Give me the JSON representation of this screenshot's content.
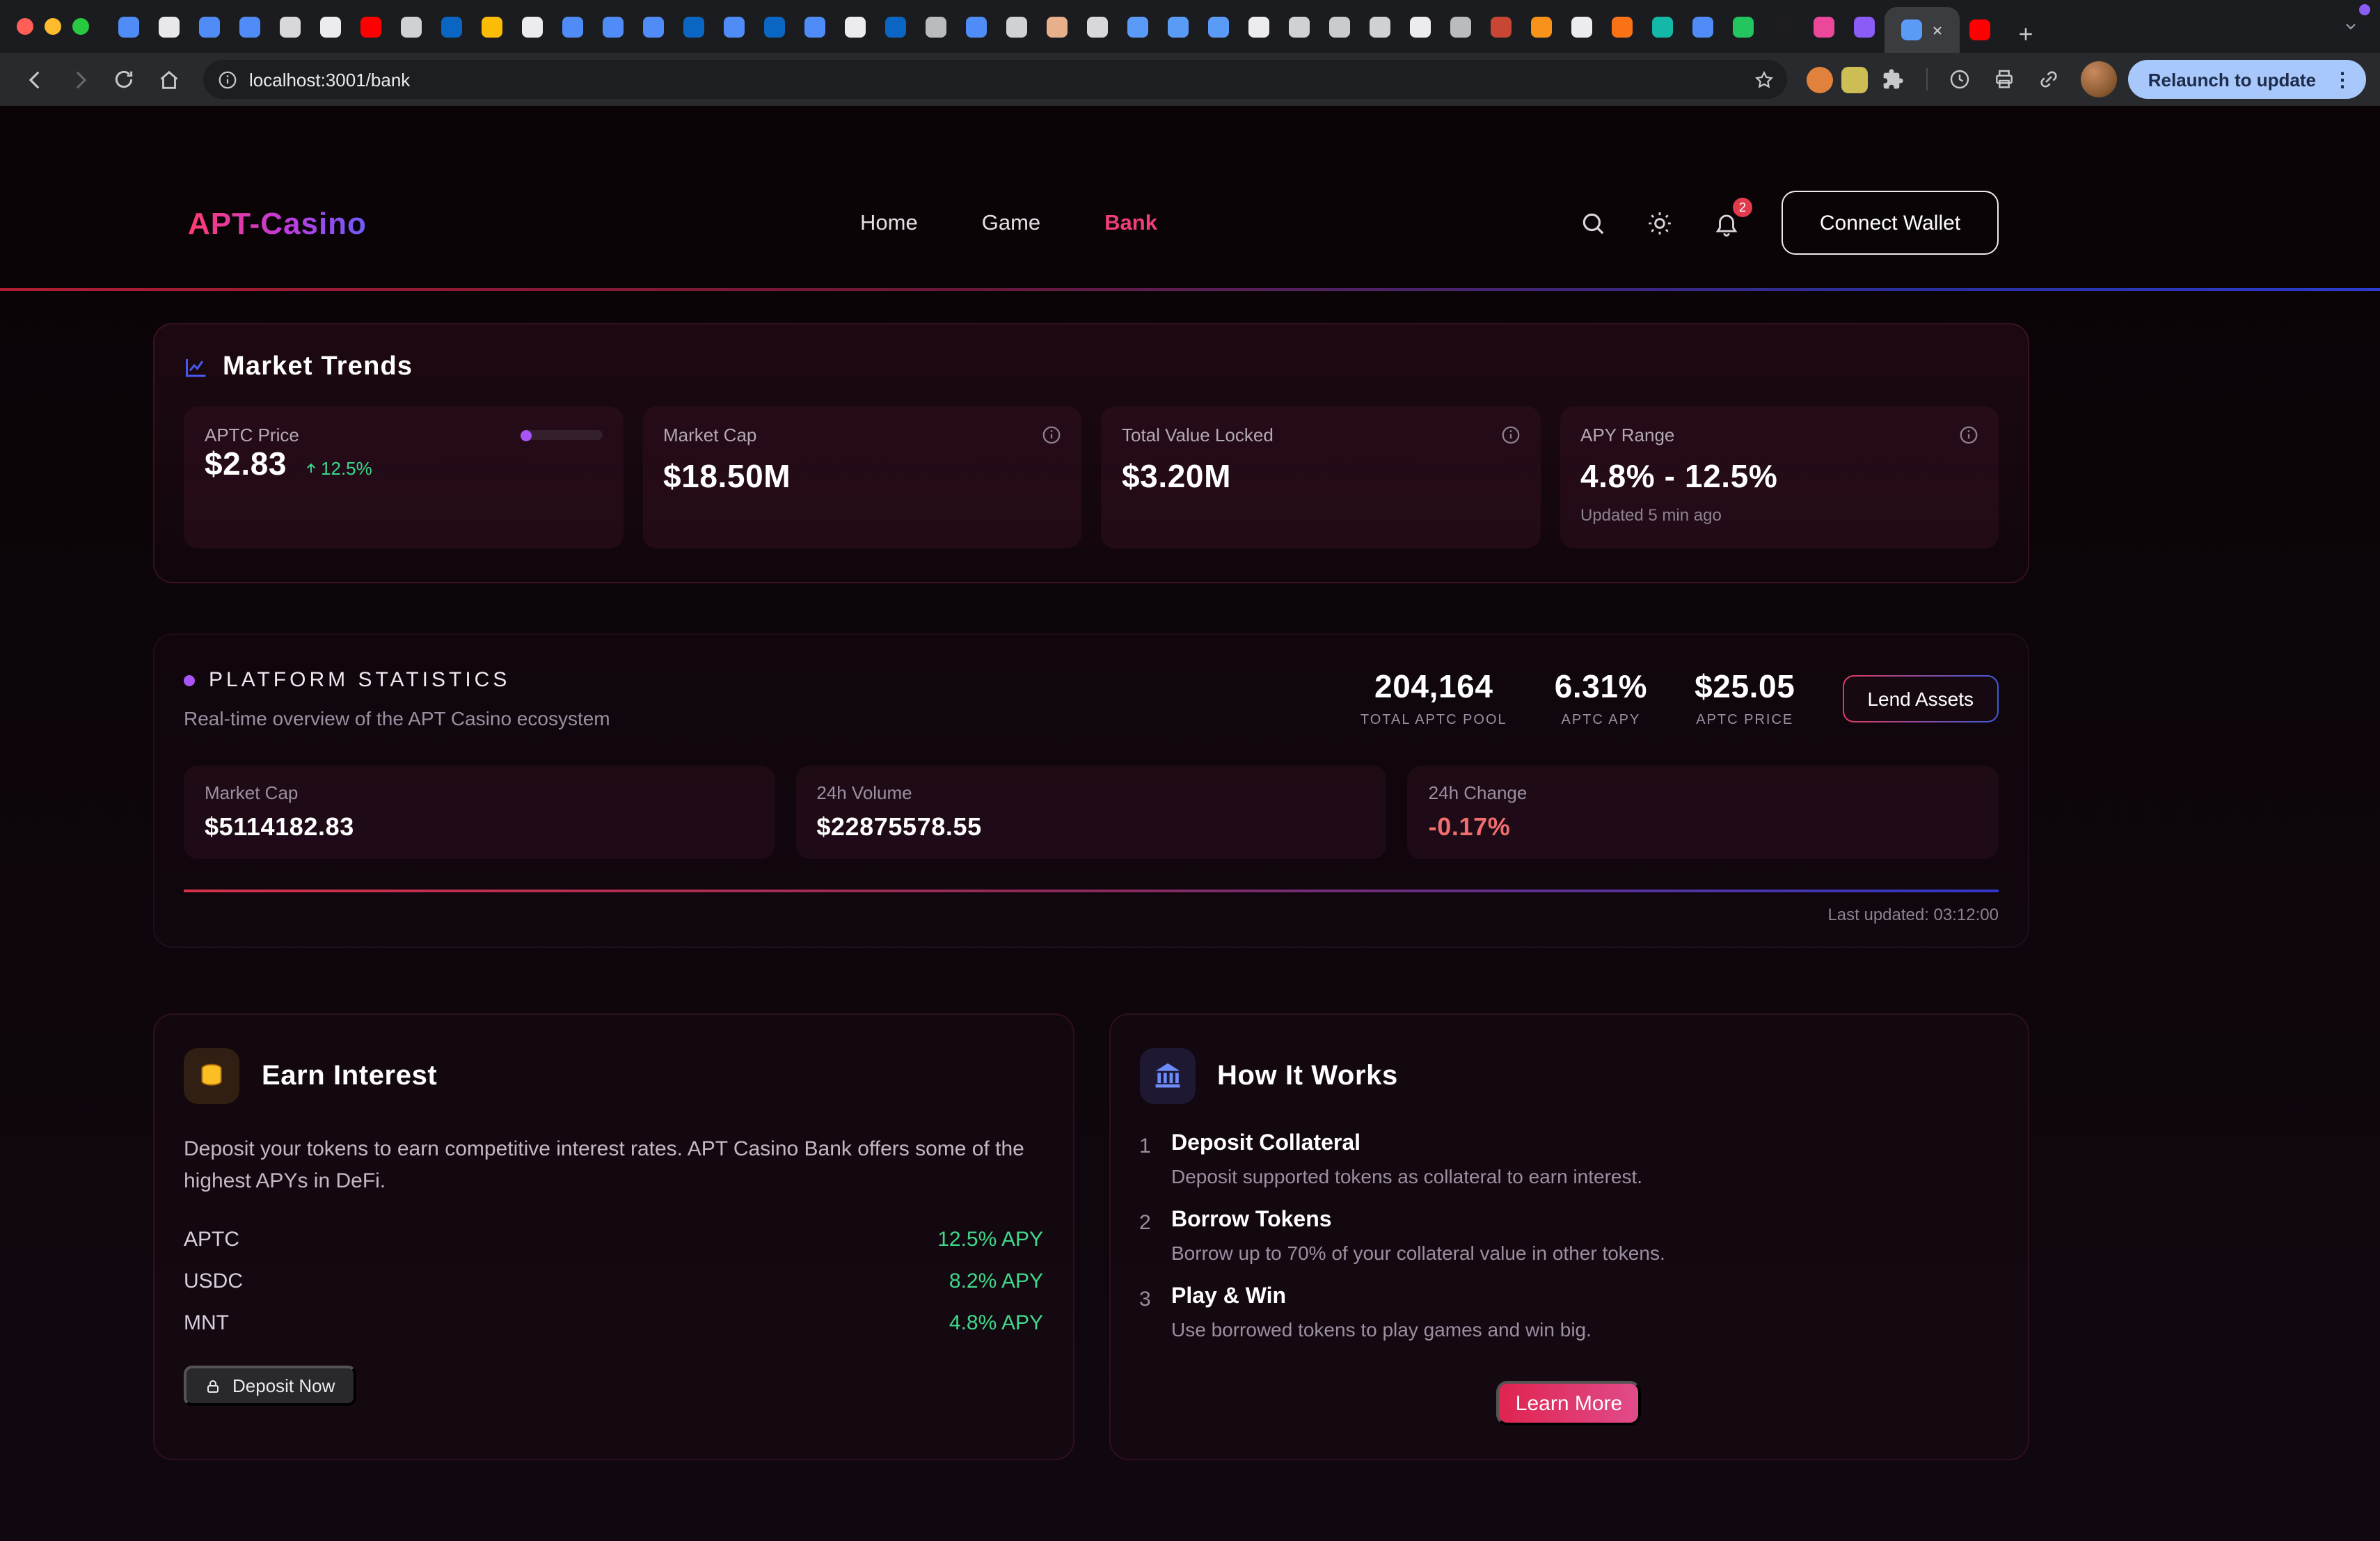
{
  "browser": {
    "url": "localhost:3001/bank",
    "relaunch_label": "Relaunch to update",
    "tab_colors": [
      "#4f8cf7",
      "#e8e8ea",
      "#4f8cf7",
      "#4f8cf7",
      "#d8d8da",
      "#ececee",
      "#ff0000",
      "#cfd1d4",
      "#0a66c2",
      "#fbbc04",
      "#ececee",
      "#4f8cf7",
      "#4f8cf7",
      "#4f8cf7",
      "#0a66c2",
      "#4f8cf7",
      "#0a66c2",
      "#4f8cf7",
      "#ececee",
      "#0a66c2",
      "#b9bbbe",
      "#4f8cf7",
      "#cfd1d4",
      "#e8b08a",
      "#d8d8da",
      "#5b9bf8",
      "#5b9bf8",
      "#5b9bf8",
      "#ececee",
      "#cfd1d4",
      "#c9cbce",
      "#cfd1d4",
      "#ececee",
      "#b9bbbe",
      "#c74634",
      "#f7931a",
      "#ececee",
      "#f97316",
      "#14b8a6",
      "#4f8cf7",
      "#22c55e",
      "#1d1d1f",
      "#ec4899",
      "#8b5cf6"
    ],
    "active_tab_color": "#5b9bf8",
    "last_tab_color": "#ff0000"
  },
  "header": {
    "logo": "APT-Casino",
    "nav": [
      {
        "label": "Home"
      },
      {
        "label": "Game"
      },
      {
        "label": "Bank"
      }
    ],
    "notifications": "2",
    "connect_wallet_label": "Connect Wallet"
  },
  "market_trends": {
    "title": "Market Trends",
    "cards": [
      {
        "label": "APTC Price",
        "value": "$2.83",
        "change": "12.5%"
      },
      {
        "label": "Market Cap",
        "value": "$18.50M"
      },
      {
        "label": "Total Value Locked",
        "value": "$3.20M"
      },
      {
        "label": "APY Range",
        "value": "4.8% - 12.5%",
        "note": "Updated 5 min ago"
      }
    ]
  },
  "platform": {
    "title": "PLATFORM STATISTICS",
    "subtitle": "Real-time overview of the APT Casino ecosystem",
    "metrics": [
      {
        "value": "204,164",
        "label": "TOTAL APTC POOL"
      },
      {
        "value": "6.31%",
        "label": "APTC APY"
      },
      {
        "value": "$25.05",
        "label": "APTC PRICE"
      }
    ],
    "lend_button_label": "Lend Assets",
    "cards": [
      {
        "label": "Market Cap",
        "value": "$5114182.83"
      },
      {
        "label": "24h Volume",
        "value": "$22875578.55"
      },
      {
        "label": "24h Change",
        "value": "-0.17%"
      }
    ],
    "last_updated": "Last updated: 03:12:00"
  },
  "earn": {
    "title": "Earn Interest",
    "description": "Deposit your tokens to earn competitive interest rates. APT Casino Bank offers some of the highest APYs in DeFi.",
    "rates": [
      {
        "token": "APTC",
        "apy": "12.5% APY"
      },
      {
        "token": "USDC",
        "apy": "8.2% APY"
      },
      {
        "token": "MNT",
        "apy": "4.8% APY"
      }
    ],
    "deposit_button_label": "Deposit Now"
  },
  "how": {
    "title": "How It Works",
    "steps": [
      {
        "num": "1",
        "title": "Deposit Collateral",
        "desc": "Deposit supported tokens as collateral to earn interest."
      },
      {
        "num": "2",
        "title": "Borrow Tokens",
        "desc": "Borrow up to 70% of your collateral value in other tokens."
      },
      {
        "num": "3",
        "title": "Play & Win",
        "desc": "Use borrowed tokens to play games and win big."
      }
    ],
    "learn_more_label": "Learn More"
  },
  "colors": {
    "accent_pink": "#ef3e7b",
    "positive_green": "#3fd98a",
    "negative_red": "#f26d6d",
    "accent_blue": "#4558f0"
  }
}
